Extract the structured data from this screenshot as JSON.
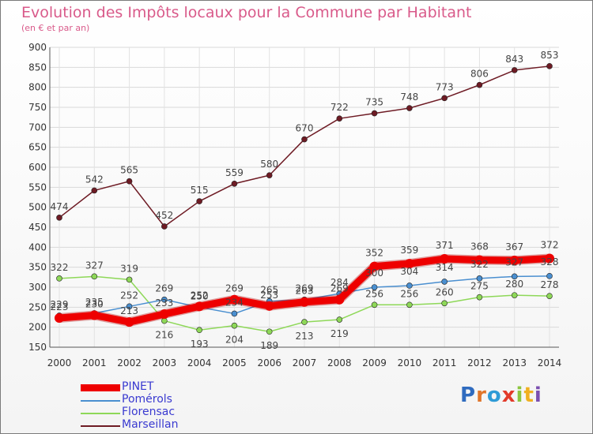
{
  "chart_data": {
    "type": "line",
    "title": "Evolution des Impôts locaux pour la Commune par Habitant",
    "subtitle": "(en € et par an)",
    "x": [
      "2000",
      "2001",
      "2002",
      "2003",
      "2004",
      "2005",
      "2006",
      "2007",
      "2008",
      "2009",
      "2010",
      "2011",
      "2012",
      "2013",
      "2014"
    ],
    "ylim": [
      150,
      900
    ],
    "yticks": [
      150,
      200,
      250,
      300,
      350,
      400,
      450,
      500,
      550,
      600,
      650,
      700,
      750,
      800,
      850,
      900
    ],
    "grid": true,
    "legend_position": "bottom-left",
    "series": [
      {
        "name": "Marseillan",
        "color": "#6e1b24",
        "values": [
          474,
          542,
          565,
          452,
          515,
          559,
          580,
          670,
          722,
          735,
          748,
          773,
          806,
          843,
          853
        ]
      },
      {
        "name": "Florensac",
        "color": "#8ed858",
        "values": [
          322,
          327,
          319,
          216,
          193,
          204,
          189,
          213,
          219,
          256,
          256,
          260,
          275,
          280,
          278
        ]
      },
      {
        "name": "Pomérols",
        "color": "#4a8fd0",
        "values": [
          229,
          235,
          252,
          269,
          250,
          234,
          265,
          269,
          284,
          300,
          304,
          314,
          322,
          327,
          328
        ]
      },
      {
        "name": "PINET",
        "color": "#ee0000",
        "values": [
          223,
          230,
          213,
          233,
          252,
          269,
          253,
          263,
          269,
          352,
          359,
          371,
          368,
          367,
          372
        ]
      }
    ]
  },
  "legend": {
    "items": [
      {
        "name": "PINET",
        "color": "#ee0000"
      },
      {
        "name": "Pomérols",
        "color": "#4a8fd0"
      },
      {
        "name": "Florensac",
        "color": "#8ed858"
      },
      {
        "name": "Marseillan",
        "color": "#6e1b24"
      }
    ]
  },
  "logo": {
    "letters": [
      "P",
      "r",
      "o",
      "x",
      "i",
      "t",
      "i"
    ]
  }
}
